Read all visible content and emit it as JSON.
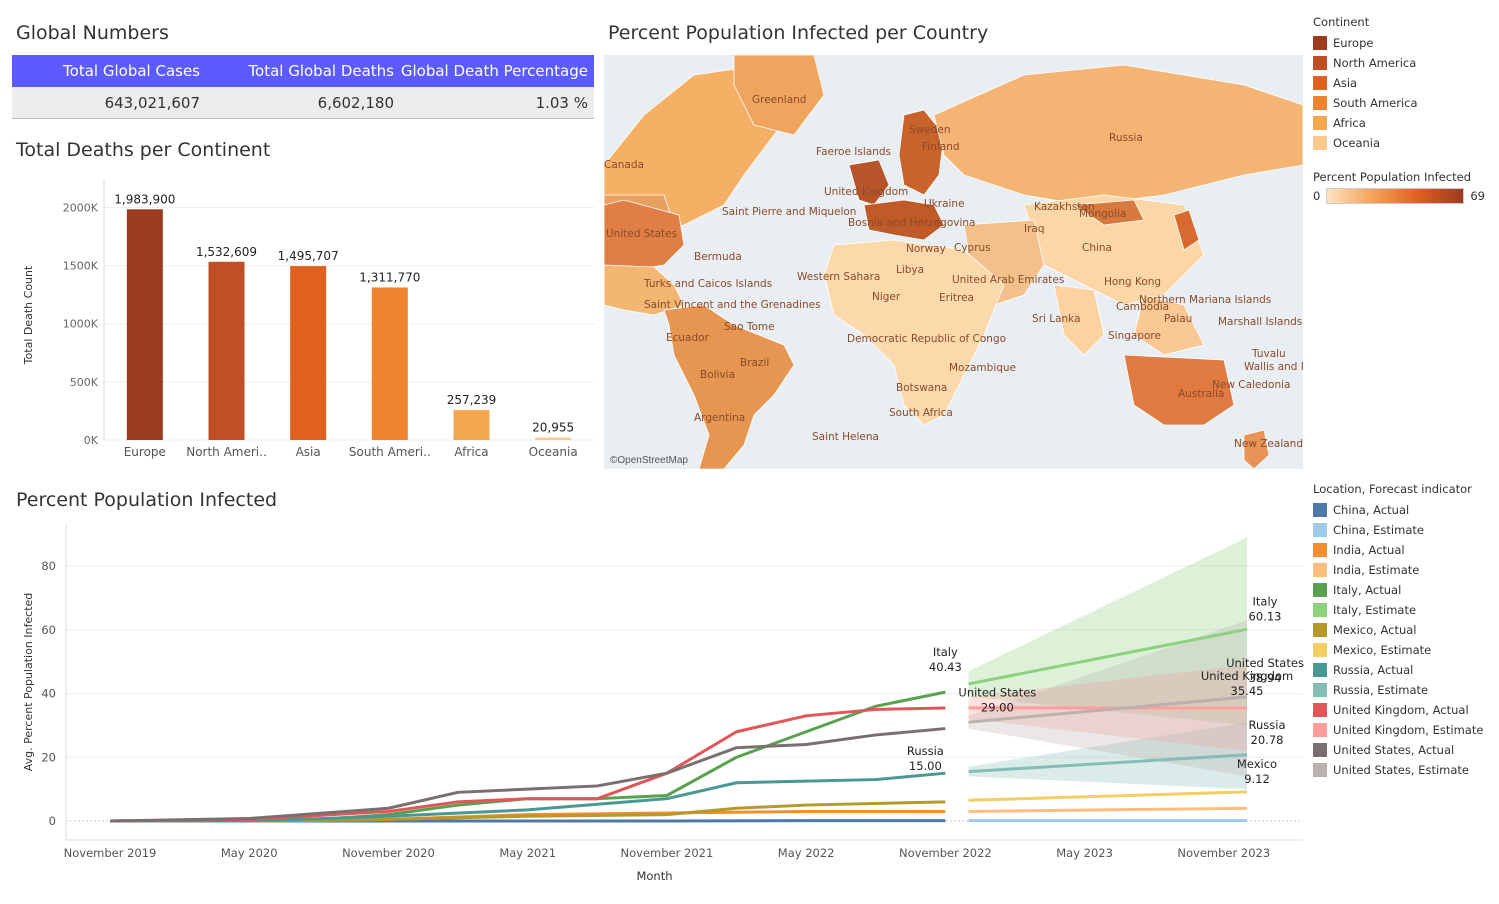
{
  "global_numbers": {
    "title": "Global Numbers",
    "headers": [
      "Total Global Cases",
      "Total Global Deaths",
      "Global Death Percentage"
    ],
    "values": [
      "643,021,607",
      "6,602,180",
      "1.03 %"
    ]
  },
  "map": {
    "title": "Percent Population Infected per  Country",
    "attribution": "©OpenStreetMap",
    "labels": [
      "Greenland",
      "Russia",
      "Canada",
      "Finland",
      "Sweden",
      "Faeroe Islands",
      "United Kingdom",
      "Kazakhstan",
      "Mongolia",
      "United States",
      "Saint Pierre and Miquelon",
      "Bermuda",
      "China",
      "Western Sahara",
      "Libya",
      "United Arab Emirates",
      "Turks and Caicos Islands",
      "Saint Vincent and the Grenadines",
      "Hong Kong",
      "Northern Mariana Islands",
      "Marshall Islands",
      "Sri Lanka",
      "Palau",
      "Singapore",
      "Cambodia",
      "Ecuador",
      "Brazil",
      "Bolivia",
      "Argentina",
      "Eritrea",
      "Democratic Republic of Congo",
      "Mozambique",
      "Botswana",
      "South Africa",
      "Australia",
      "New Caledonia",
      "Tuvalu",
      "Wallis and Futuna",
      "New Zealand",
      "Saint Helena",
      "Norway",
      "Cyprus",
      "Iraq",
      "Bosnia and Herzegovina",
      "Ukraine",
      "Niger",
      "Sao Tome"
    ]
  },
  "continent_legend": {
    "title": "Continent",
    "items": [
      {
        "label": "Europe",
        "color": "#9b3b1f"
      },
      {
        "label": "North America",
        "color": "#c04f24"
      },
      {
        "label": "Asia",
        "color": "#e06020"
      },
      {
        "label": "South America",
        "color": "#f08330"
      },
      {
        "label": "Africa",
        "color": "#f5a74d"
      },
      {
        "label": "Oceania",
        "color": "#fbc98d"
      }
    ]
  },
  "ppi_legend": {
    "title": "Percent Population Infected",
    "min": "0",
    "max": "69",
    "color_low": "#fde3bf",
    "color_high": "#9b3b1f"
  },
  "line_legend": {
    "title": "Location, Forecast indicator",
    "items": [
      {
        "label": "China, Actual",
        "color": "#4e79a7"
      },
      {
        "label": "China, Estimate",
        "color": "#a0cbe8"
      },
      {
        "label": "India, Actual",
        "color": "#f28e2b"
      },
      {
        "label": "India, Estimate",
        "color": "#ffbe7d"
      },
      {
        "label": "Italy, Actual",
        "color": "#59a14f"
      },
      {
        "label": "Italy, Estimate",
        "color": "#8cd17d"
      },
      {
        "label": "Mexico, Actual",
        "color": "#b6992d"
      },
      {
        "label": "Mexico, Estimate",
        "color": "#f1ce63"
      },
      {
        "label": "Russia, Actual",
        "color": "#499894"
      },
      {
        "label": "Russia, Estimate",
        "color": "#86bcb6"
      },
      {
        "label": "United Kingdom, Actual",
        "color": "#e15759"
      },
      {
        "label": "United Kingdom, Estimate",
        "color": "#ff9d9a"
      },
      {
        "label": "United States, Actual",
        "color": "#79706e"
      },
      {
        "label": "United States, Estimate",
        "color": "#bab0ac"
      }
    ]
  },
  "chart_data": [
    {
      "type": "bar",
      "title": "Total Deaths per Continent",
      "ylabel": "Total Death Count",
      "xlabel": "",
      "categories": [
        "Europe",
        "North Ameri..",
        "Asia",
        "South Ameri..",
        "Africa",
        "Oceania"
      ],
      "values": [
        1983900,
        1532609,
        1495707,
        1311770,
        257239,
        20955
      ],
      "data_labels": [
        "1,983,900",
        "1,532,609",
        "1,495,707",
        "1,311,770",
        "257,239",
        "20,955"
      ],
      "colors": [
        "#9b3b1f",
        "#c04f24",
        "#e06020",
        "#f08330",
        "#f5a74d",
        "#fbc98d"
      ],
      "yticks": [
        0,
        500000,
        1000000,
        1500000,
        2000000
      ],
      "ytick_labels": [
        "0K",
        "500K",
        "1000K",
        "1500K",
        "2000K"
      ],
      "ylim": [
        0,
        2150000
      ],
      "grid": true
    },
    {
      "type": "line",
      "title": "Percent Population Infected",
      "xlabel": "Month",
      "ylabel": "Avg. Percent Population Infected",
      "x_ticks": [
        "November 2019",
        "May 2020",
        "November 2020",
        "May 2021",
        "November 2021",
        "May 2022",
        "November 2022",
        "May 2023",
        "November 2023"
      ],
      "x_range": [
        "2019-11",
        "2023-12"
      ],
      "ylim": [
        -2,
        92
      ],
      "yticks": [
        0,
        20,
        40,
        60,
        80
      ],
      "grid": true,
      "series": [
        {
          "name": "China, Actual",
          "x": [
            "2019-11",
            "2020-05",
            "2020-11",
            "2021-05",
            "2021-11",
            "2022-05",
            "2022-11"
          ],
          "y": [
            0,
            0,
            0,
            0,
            0,
            0.1,
            0.1
          ]
        },
        {
          "name": "India, Actual",
          "x": [
            "2019-11",
            "2020-05",
            "2020-11",
            "2021-05",
            "2021-11",
            "2022-05",
            "2022-11"
          ],
          "y": [
            0,
            0,
            0.5,
            2,
            2.5,
            3,
            3
          ]
        },
        {
          "name": "Italy, Actual",
          "x": [
            "2019-11",
            "2020-02",
            "2020-05",
            "2020-08",
            "2020-11",
            "2021-02",
            "2021-05",
            "2021-08",
            "2021-11",
            "2022-02",
            "2022-05",
            "2022-08",
            "2022-11"
          ],
          "y": [
            0,
            0,
            0.4,
            0.5,
            2,
            5,
            7,
            7,
            8,
            20,
            28,
            36,
            40.43
          ]
        },
        {
          "name": "Mexico, Actual",
          "x": [
            "2019-11",
            "2020-05",
            "2020-11",
            "2021-05",
            "2021-11",
            "2022-02",
            "2022-05",
            "2022-11"
          ],
          "y": [
            0,
            0,
            0.5,
            1.5,
            2,
            4,
            5,
            6
          ]
        },
        {
          "name": "Russia, Actual",
          "x": [
            "2019-11",
            "2020-05",
            "2020-11",
            "2021-05",
            "2021-11",
            "2022-02",
            "2022-05",
            "2022-08",
            "2022-11"
          ],
          "y": [
            0,
            0,
            1.5,
            3.5,
            7,
            12,
            12.5,
            13,
            15.0
          ]
        },
        {
          "name": "United Kingdom, Actual",
          "x": [
            "2019-11",
            "2020-05",
            "2020-11",
            "2021-02",
            "2021-05",
            "2021-08",
            "2021-11",
            "2022-02",
            "2022-05",
            "2022-08",
            "2022-11"
          ],
          "y": [
            0,
            0.5,
            3,
            6,
            7,
            7,
            15,
            28,
            33,
            35,
            35.45
          ]
        },
        {
          "name": "United States, Actual",
          "x": [
            "2019-11",
            "2020-05",
            "2020-11",
            "2021-02",
            "2021-05",
            "2021-08",
            "2021-11",
            "2022-02",
            "2022-05",
            "2022-08",
            "2022-11"
          ],
          "y": [
            0,
            0.8,
            4,
            9,
            10,
            11,
            15,
            23,
            24,
            27,
            29.0
          ]
        },
        {
          "name": "China, Estimate",
          "x": [
            "2022-12",
            "2023-12"
          ],
          "y": [
            0.1,
            0.1
          ]
        },
        {
          "name": "India, Estimate",
          "x": [
            "2022-12",
            "2023-12"
          ],
          "y": [
            3,
            4
          ]
        },
        {
          "name": "Italy, Estimate",
          "x": [
            "2022-12",
            "2023-12"
          ],
          "y": [
            43,
            60.13
          ],
          "band_low": [
            39,
            30
          ],
          "band_high": [
            47,
            89
          ]
        },
        {
          "name": "Mexico, Estimate",
          "x": [
            "2022-12",
            "2023-12"
          ],
          "y": [
            6.5,
            9.12
          ]
        },
        {
          "name": "Russia, Estimate",
          "x": [
            "2022-12",
            "2023-12"
          ],
          "y": [
            15.5,
            20.78
          ],
          "band_low": [
            14,
            10
          ],
          "band_high": [
            17,
            31
          ]
        },
        {
          "name": "United Kingdom, Estimate",
          "x": [
            "2022-12",
            "2023-12"
          ],
          "y": [
            35.5,
            35.45
          ],
          "band_low": [
            32,
            22
          ],
          "band_high": [
            39,
            49
          ]
        },
        {
          "name": "United States, Estimate",
          "x": [
            "2022-12",
            "2023-12"
          ],
          "y": [
            31,
            38.94
          ],
          "band_low": [
            29,
            14
          ],
          "band_high": [
            33,
            63
          ]
        }
      ],
      "annotations": [
        {
          "text": [
            "Italy",
            "40.43"
          ],
          "x": "2022-11",
          "y": 40.43
        },
        {
          "text": [
            "Russia",
            "15.00"
          ],
          "x": "2022-11",
          "y": 15.0
        },
        {
          "text": [
            "United States",
            "29.00"
          ],
          "x": "2022-11",
          "y": 29.0
        },
        {
          "text": [
            "Italy",
            "60.13"
          ],
          "x": "2023-12",
          "y": 60.13
        },
        {
          "text": [
            "United States",
            "38.94"
          ],
          "x": "2023-12",
          "y": 38.94
        },
        {
          "text": [
            "United Kingdom",
            "35.45"
          ],
          "x": "2023-12",
          "y": 35.45
        },
        {
          "text": [
            "Russia",
            "20.78"
          ],
          "x": "2023-12",
          "y": 20.78
        },
        {
          "text": [
            "Mexico",
            "9.12"
          ],
          "x": "2023-12",
          "y": 9.12
        }
      ]
    }
  ]
}
